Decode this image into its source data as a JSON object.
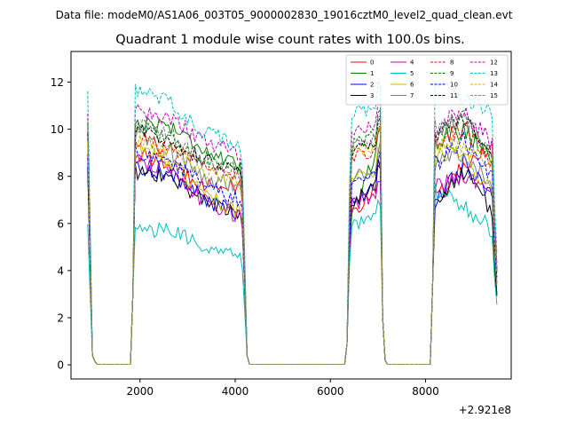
{
  "chart_data": {
    "type": "line",
    "suptitle": "Data file: modeM0/AS1A06_003T05_9000002830_19016cztM0_level2_quad_clean.evt",
    "title": "Quadrant 1 module wise count rates with 100.0s bins.",
    "xlabel": "",
    "ylabel": "",
    "offset_label": "+2.921e8",
    "xlim": [
      550,
      9800
    ],
    "ylim": [
      -0.6,
      13.3
    ],
    "xticks": [
      2000,
      4000,
      6000,
      8000
    ],
    "yticks": [
      0,
      2,
      4,
      6,
      8,
      10,
      12
    ],
    "legend_position": "top-right",
    "segments": [
      [
        900,
        1800
      ],
      [
        1800,
        4300
      ],
      [
        4300,
        6300
      ],
      [
        6300,
        7200
      ],
      [
        7200,
        8100
      ],
      [
        8100,
        9500
      ]
    ],
    "series_labels": [
      "0",
      "1",
      "2",
      "3",
      "4",
      "5",
      "6",
      "7",
      "8",
      "9",
      "10",
      "11",
      "12",
      "13",
      "14",
      "15"
    ],
    "colors": [
      "#ff0000",
      "#008000",
      "#0000ff",
      "#000000",
      "#bf00bf",
      "#00bfbf",
      "#bfbf00",
      "#808080",
      "#ff0000",
      "#008000",
      "#0000ff",
      "#000000",
      "#bf00bf",
      "#00bfbf",
      "#bfbf00",
      "#808080"
    ],
    "dashed": [
      false,
      false,
      false,
      false,
      false,
      false,
      false,
      false,
      true,
      true,
      true,
      true,
      true,
      true,
      true,
      true
    ],
    "levels": {
      "0": [
        9.0,
        7.9,
        7.5,
        6.4,
        7.7,
        7.0,
        8.4,
        9.3
      ],
      "1": [
        10.3,
        10.0,
        8.3,
        6.5,
        9.4,
        9.5,
        10.0,
        8.8
      ],
      "2": [
        8.4,
        7.8,
        6.3,
        6.9,
        7.7,
        6.9,
        8.6,
        7.0
      ],
      "3": [
        8.2,
        7.7,
        6.3,
        6.9,
        7.8,
        6.8,
        8.2,
        6.5
      ],
      "4": [
        8.8,
        7.5,
        6.3,
        6.8,
        7.2,
        7.5,
        8.0,
        7.4
      ],
      "5": [
        5.8,
        5.5,
        4.6,
        6.0,
        6.2,
        7.3,
        6.7,
        5.7
      ],
      "6": [
        9.2,
        8.0,
        6.5,
        7.8,
        8.3,
        8.8,
        9.0,
        7.2
      ],
      "7": [
        9.8,
        8.3,
        7.6,
        7.9,
        8.4,
        8.5,
        8.9,
        7.7
      ],
      "8": [
        9.6,
        8.8,
        7.8,
        8.8,
        9.2,
        9.6,
        10.0,
        8.5
      ],
      "9": [
        10.1,
        9.2,
        8.3,
        9.3,
        9.8,
        9.8,
        10.5,
        8.8
      ],
      "10": [
        9.0,
        8.3,
        7.0,
        7.6,
        8.1,
        8.5,
        9.5,
        8.0
      ],
      "11": [
        10.0,
        9.0,
        8.3,
        9.0,
        9.6,
        9.8,
        10.6,
        9.0
      ],
      "12": [
        10.8,
        10.1,
        8.9,
        9.8,
        10.2,
        10.0,
        10.8,
        9.4
      ],
      "13": [
        11.7,
        10.5,
        9.3,
        10.7,
        11.0,
        11.8,
        11.3,
        10.6
      ],
      "14": [
        9.5,
        8.8,
        7.7,
        8.9,
        9.3,
        9.2,
        9.4,
        8.6
      ],
      "15": [
        10.3,
        9.2,
        8.0,
        9.2,
        9.7,
        10.0,
        10.4,
        9.0
      ]
    }
  }
}
